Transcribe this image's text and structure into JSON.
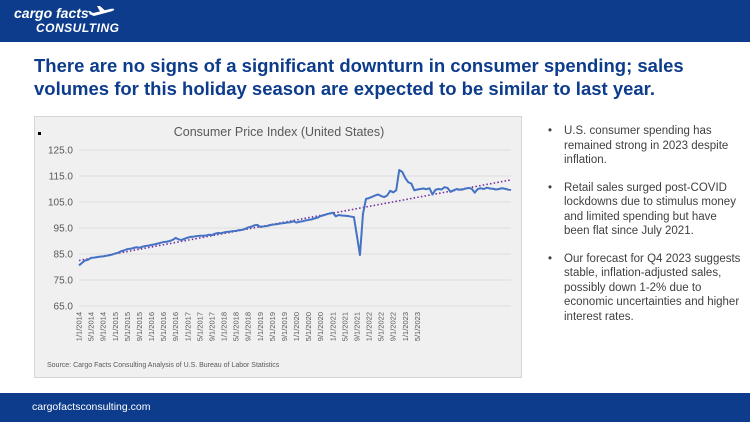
{
  "header": {
    "logo_line1": "cargo facts",
    "logo_line2": "CONSULTING"
  },
  "headline": "There are no signs of a significant downturn in consumer spending; sales volumes for this holiday season are expected to be similar to last year.",
  "chart_data": {
    "type": "line",
    "title": "Consumer Price Index (United States)",
    "xlabel": "",
    "ylabel": "",
    "ylim": [
      65,
      125
    ],
    "yticks": [
      "125.0",
      "115.0",
      "105.0",
      "95.0",
      "85.0",
      "75.0",
      "65.0"
    ],
    "x_tick_labels": [
      "1/1/2014",
      "5/1/2014",
      "9/1/2014",
      "1/1/2015",
      "5/1/2015",
      "9/1/2015",
      "1/1/2016",
      "5/1/2016",
      "9/1/2016",
      "1/1/2017",
      "5/1/2017",
      "9/1/2017",
      "1/1/2018",
      "5/1/2018",
      "9/1/2018",
      "1/1/2019",
      "5/1/2019",
      "9/1/2019",
      "1/1/2020",
      "5/1/2020",
      "9/1/2020",
      "1/1/2021",
      "5/1/2021",
      "9/1/2021",
      "1/1/2022",
      "5/1/2022",
      "9/1/2022",
      "1/1/2023",
      "5/1/2023"
    ],
    "x_start": "1/1/2014",
    "x_end": "12/1/2023",
    "grid": true,
    "colors": {
      "series": "#4472c4",
      "trend": "#7030a0"
    },
    "series": [
      {
        "values": [
          80.6,
          81.6,
          82.5,
          82.8,
          83.5,
          83.6,
          83.8,
          84.0,
          84.1,
          84.3,
          84.5,
          84.8,
          85.2,
          85.5,
          86.1,
          86.4,
          86.9,
          87.0,
          87.3,
          87.6,
          87.4,
          87.8,
          88.1,
          88.2,
          88.5,
          88.7,
          89.0,
          89.3,
          89.6,
          89.7,
          90.0,
          90.4,
          91.2,
          90.6,
          90.4,
          90.9,
          91.3,
          91.6,
          91.7,
          91.9,
          92.0,
          92.0,
          92.1,
          92.4,
          92.3,
          92.8,
          93.1,
          93.0,
          93.3,
          93.5,
          93.6,
          93.8,
          93.9,
          94.2,
          94.3,
          94.7,
          95.2,
          95.5,
          96.0,
          96.2,
          95.4,
          95.6,
          95.7,
          96.0,
          96.3,
          96.4,
          96.6,
          96.8,
          96.9,
          97.1,
          97.2,
          97.6,
          97.1,
          97.4,
          97.6,
          97.9,
          98.1,
          98.3,
          98.7,
          99.0,
          99.6,
          99.9,
          100.3,
          100.6,
          100.9,
          99.5,
          100.0,
          99.8,
          99.7,
          99.6,
          99.4,
          99.2,
          92.0,
          84.6,
          100.4,
          106.2,
          106.5,
          107.0,
          107.5,
          107.9,
          107.3,
          106.9,
          107.5,
          109.3,
          108.7,
          109.5,
          117.3,
          116.6,
          114.2,
          112.6,
          112.1,
          109.5,
          109.8,
          110.0,
          110.2,
          109.9,
          110.3,
          107.9,
          109.7,
          110.0,
          109.8,
          110.7,
          110.4,
          108.9,
          109.5,
          110.0,
          109.7,
          109.8,
          110.2,
          110.4,
          110.1,
          108.6,
          110.0,
          110.3,
          110.0,
          110.5,
          110.2,
          110.1,
          109.8,
          110.0,
          110.3,
          110.1,
          109.8,
          109.6
        ]
      }
    ],
    "trendline": {
      "start": 82.5,
      "end": 113.5
    }
  },
  "chart_source": "Source: Cargo Facts Consulting Analysis of U.S. Bureau of Labor Statistics",
  "bullets": [
    "U.S. consumer spending has remained strong in 2023 despite inflation.",
    "Retail sales surged post-COVID lockdowns due to stimulus money and limited spending but have been flat since July 2021.",
    "Our forecast for Q4 2023 suggests stable, inflation-adjusted sales, possibly down 1-2% due to economic uncertainties and higher interest rates."
  ],
  "bullet_symbol": "•",
  "footer": {
    "url": "cargofactsconsulting.com"
  }
}
